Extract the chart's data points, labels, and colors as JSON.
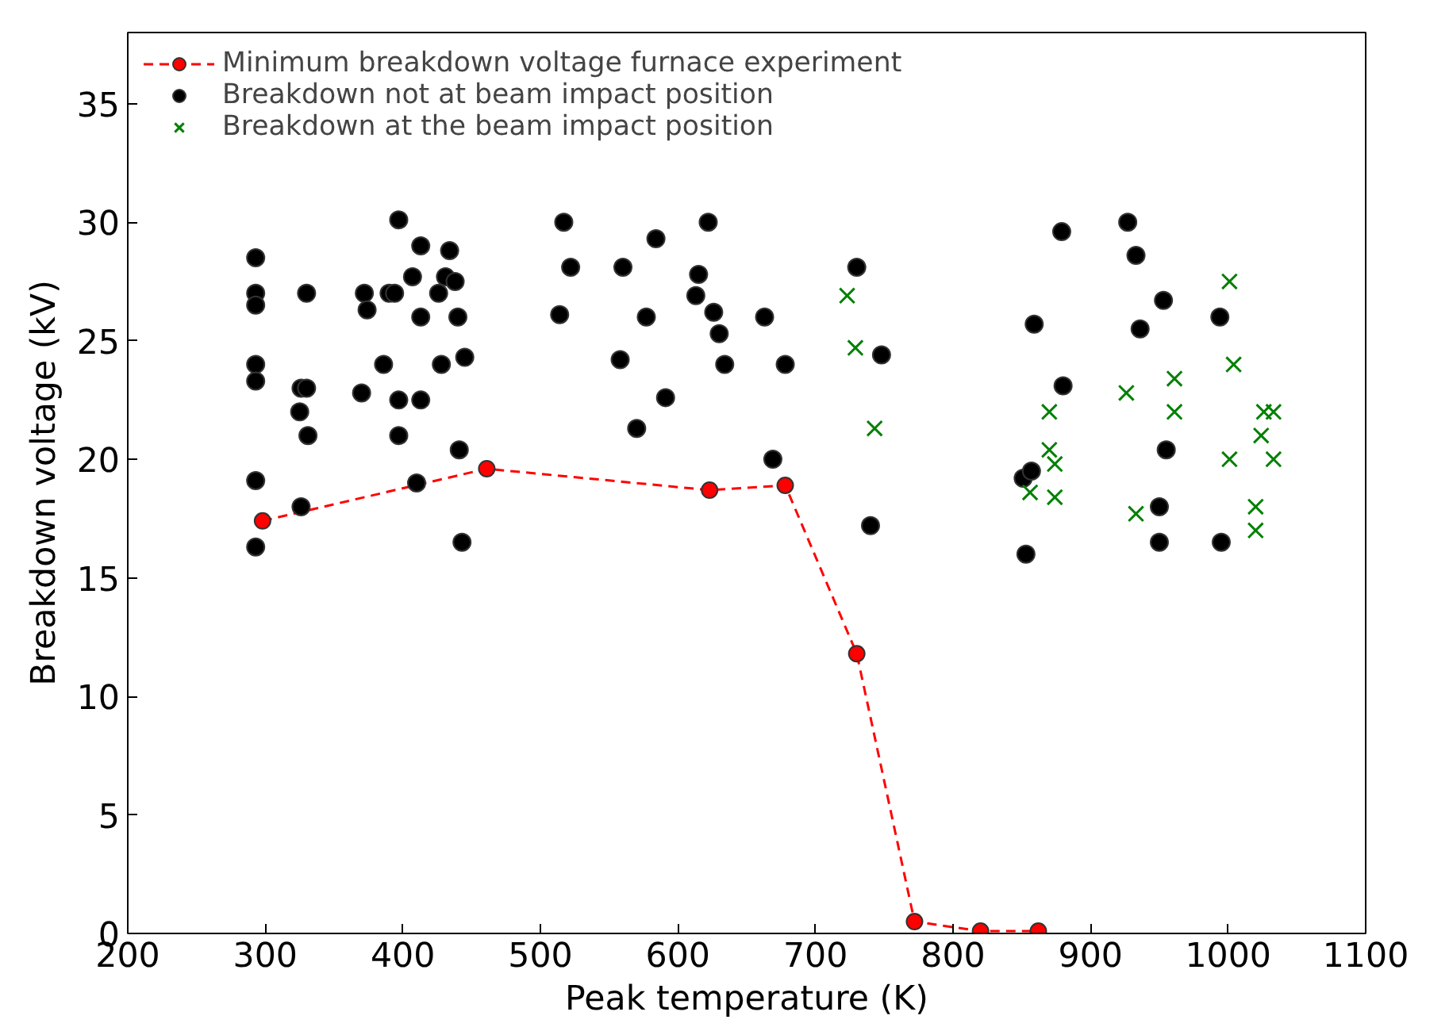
{
  "chart_data": {
    "type": "scatter",
    "xlabel": "Peak temperature (K)",
    "ylabel": "Breakdown voltage (kV)",
    "xlim": [
      200,
      1100
    ],
    "xticks": [
      200,
      300,
      400,
      500,
      600,
      700,
      800,
      900,
      1000,
      1100
    ],
    "ylim": [
      0,
      38
    ],
    "yticks": [
      0,
      5,
      10,
      15,
      20,
      25,
      30,
      35
    ],
    "grid": false,
    "legend": "top left",
    "series": [
      {
        "name": "Minimum breakdown voltage furnace experiment",
        "type": "line",
        "color": "#ff0000",
        "marker": "circle",
        "line_style": "dashed",
        "x": [
          298,
          461,
          623,
          678,
          730,
          772,
          820,
          862
        ],
        "values": [
          17.4,
          19.6,
          18.7,
          18.9,
          11.8,
          0.5,
          0.1,
          0.1
        ]
      },
      {
        "name": "Breakdown not at beam impact position",
        "color": "#000000",
        "marker": "circle",
        "x": [
          293,
          293,
          293,
          293,
          293,
          293,
          293,
          325,
          326,
          326,
          330,
          330,
          331,
          370,
          372,
          374,
          386,
          390,
          394,
          397,
          397,
          397,
          407,
          410,
          413,
          413,
          413,
          426,
          428,
          431,
          434,
          438,
          440,
          441,
          443,
          445,
          514,
          517,
          522,
          558,
          560,
          570,
          577,
          584,
          591,
          613,
          615,
          622,
          626,
          630,
          634,
          663,
          669,
          678,
          730,
          740,
          748,
          851,
          853,
          857,
          859,
          879,
          880,
          927,
          933,
          936,
          950,
          950,
          953,
          955,
          994,
          995
        ],
        "values": [
          28.5,
          27,
          26.5,
          24,
          23.3,
          19.1,
          16.3,
          22,
          23,
          18,
          27,
          23,
          21,
          22.8,
          27,
          26.3,
          24,
          27,
          27,
          30.1,
          22.5,
          21,
          27.7,
          19,
          29,
          26,
          22.5,
          27,
          24,
          27.7,
          28.8,
          27.5,
          26,
          20.4,
          16.5,
          24.3,
          26.1,
          30,
          28.1,
          24.2,
          28.1,
          21.3,
          26,
          29.3,
          22.6,
          26.9,
          27.8,
          30,
          26.2,
          25.3,
          24,
          26,
          20,
          24,
          28.1,
          17.2,
          24.4,
          19.2,
          16,
          19.5,
          25.7,
          29.6,
          23.1,
          30,
          28.6,
          25.5,
          18,
          16.5,
          26.7,
          20.4,
          26,
          16.5
        ]
      },
      {
        "name": "Breakdown at the beam impact position",
        "color": "#008000",
        "marker": "cross",
        "x": [
          723,
          729,
          743,
          856,
          870,
          870,
          874,
          874,
          926,
          933,
          961,
          961,
          1001,
          1001,
          1004,
          1020,
          1020,
          1024,
          1026,
          1033,
          1033
        ],
        "values": [
          26.9,
          24.7,
          21.3,
          18.6,
          22,
          20.4,
          19.8,
          18.4,
          22.8,
          17.7,
          23.4,
          22,
          27.5,
          20,
          24,
          18,
          17,
          21,
          22,
          22,
          20
        ]
      }
    ]
  }
}
